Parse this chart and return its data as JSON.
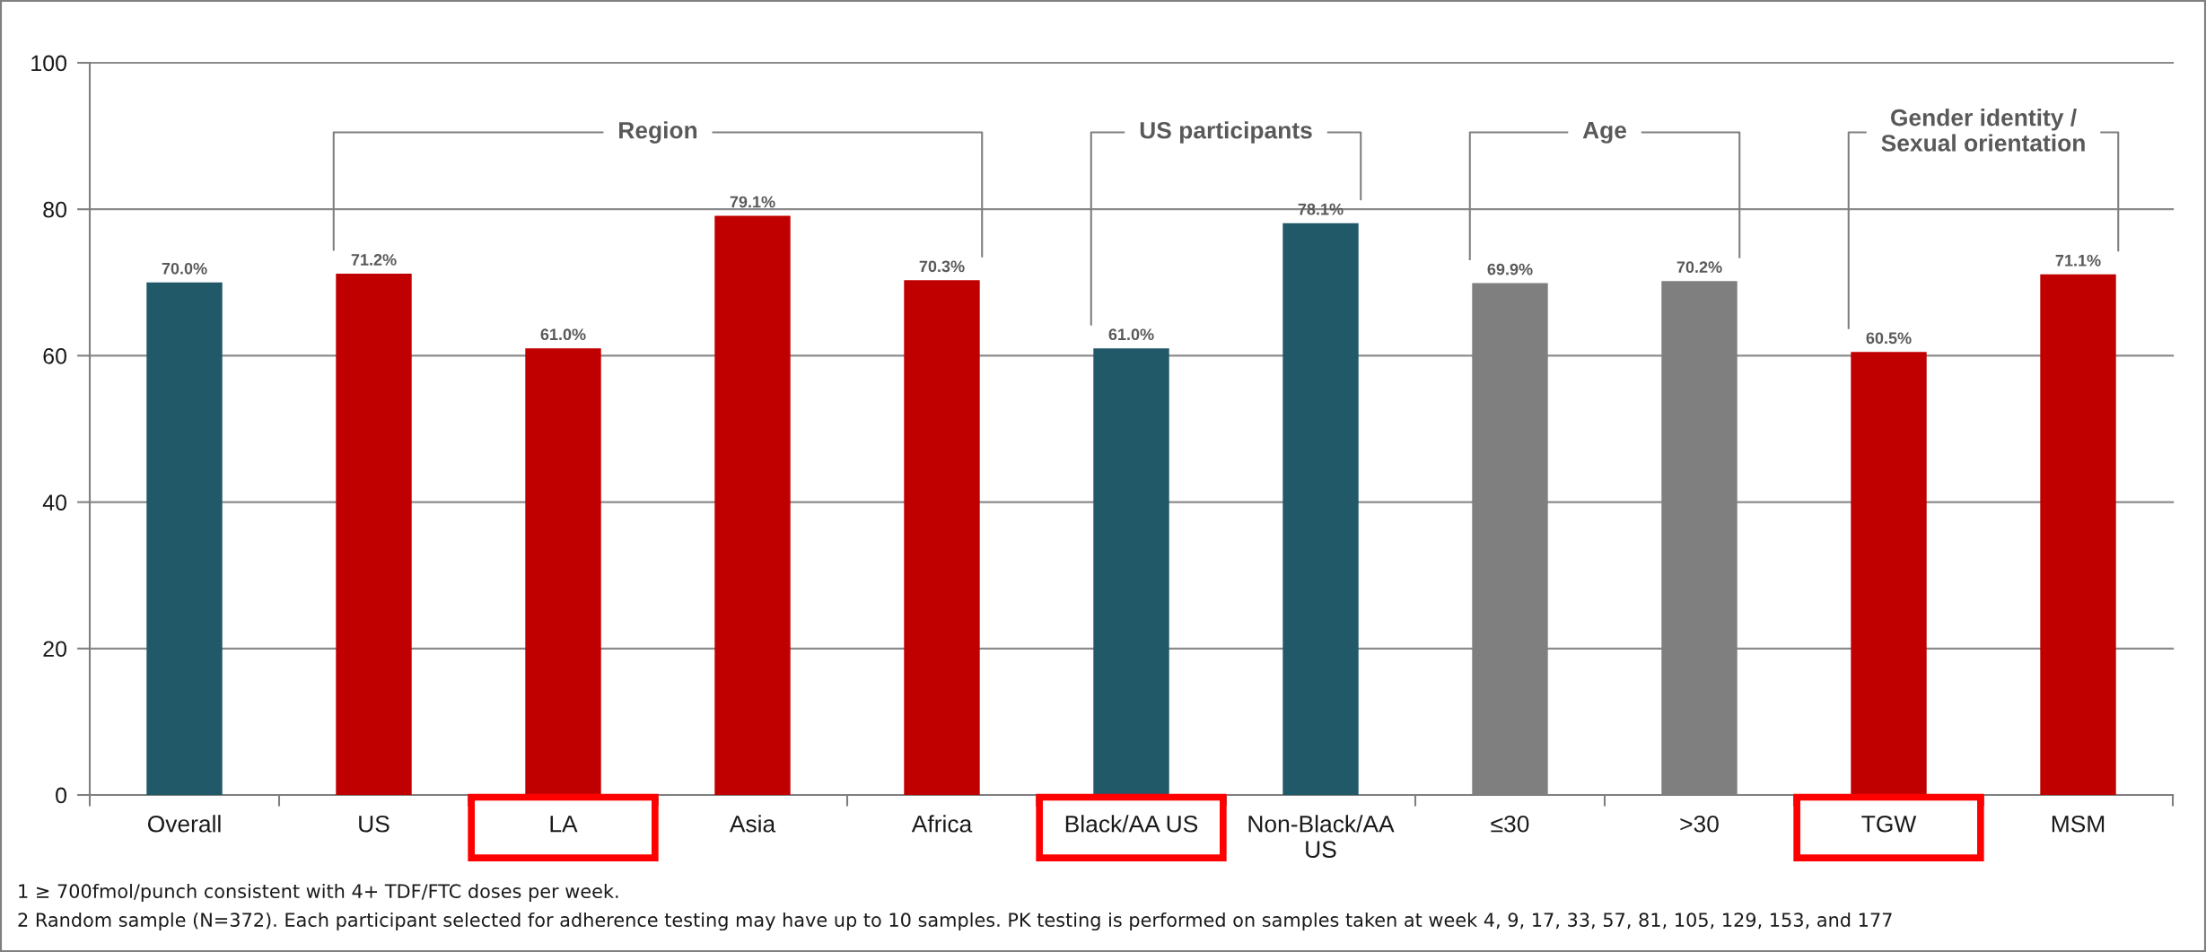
{
  "chart_data": {
    "type": "bar",
    "categories": [
      "Overall",
      "US",
      "LA",
      "Asia",
      "Africa",
      "Black/AA US",
      "Non-Black/AA\nUS",
      "≤30",
      ">30",
      "TGW",
      "MSM"
    ],
    "values": [
      70.0,
      71.2,
      61.0,
      79.1,
      70.3,
      61.0,
      78.1,
      69.9,
      70.2,
      60.5,
      71.1
    ],
    "colors": [
      "#215968",
      "#c00000",
      "#c00000",
      "#c00000",
      "#c00000",
      "#215968",
      "#215968",
      "#7f7f7f",
      "#7f7f7f",
      "#c00000",
      "#c00000"
    ],
    "value_labels": [
      "70.0%",
      "71.2%",
      "61.0%",
      "79.1%",
      "70.3%",
      "61.0%",
      "78.1%",
      "69.9%",
      "70.2%",
      "60.5%",
      "71.1%"
    ],
    "ylim": [
      0,
      100
    ],
    "yticks": [
      0,
      20,
      40,
      60,
      80,
      100
    ],
    "grid": "y",
    "annotations": [
      "Region",
      "US participants",
      "Age",
      "Gender identity /\nSexual orientation",
      "1 ≥ 700fmol/punch consistent with 4+ TDF/FTC doses per week.",
      "2 Random sample (N=372). Each participant selected for adherence testing may have up to 10 samples. PK testing is performed on samples taken at week 4, 9, 17, 33, 57, 81, 105, 129, 153, and 177"
    ]
  }
}
